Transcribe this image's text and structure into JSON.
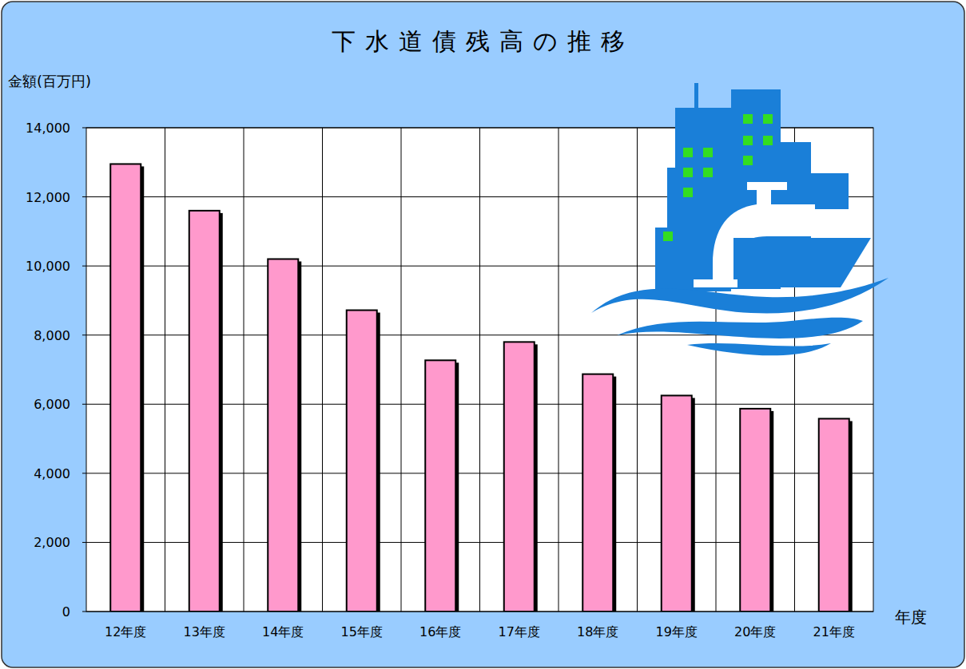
{
  "chart_data": {
    "type": "bar",
    "title": "下水道債残高の推移",
    "ylabel": "金額(百万円)",
    "xlabel": "年度",
    "categories": [
      "12年度",
      "13年度",
      "14年度",
      "15年度",
      "16年度",
      "17年度",
      "18年度",
      "19年度",
      "20年度",
      "21年度"
    ],
    "values": [
      12950,
      11600,
      10200,
      8720,
      7270,
      7800,
      6870,
      6250,
      5870,
      5580
    ],
    "color": "#ff99cc",
    "ylim": [
      0,
      14000
    ],
    "yticks": [
      0,
      {
        "value": 2000,
        "label": "2,000"
      },
      {
        "value": 4000,
        "label": "4,000"
      },
      {
        "value": 6000,
        "label": "6,000"
      },
      {
        "value": 8000,
        "label": "8,000"
      },
      {
        "value": 10000,
        "label": "10,000"
      },
      {
        "value": 12000,
        "label": "12,000"
      },
      {
        "value": 14000,
        "label": "14,000"
      }
    ],
    "grid": true
  }
}
